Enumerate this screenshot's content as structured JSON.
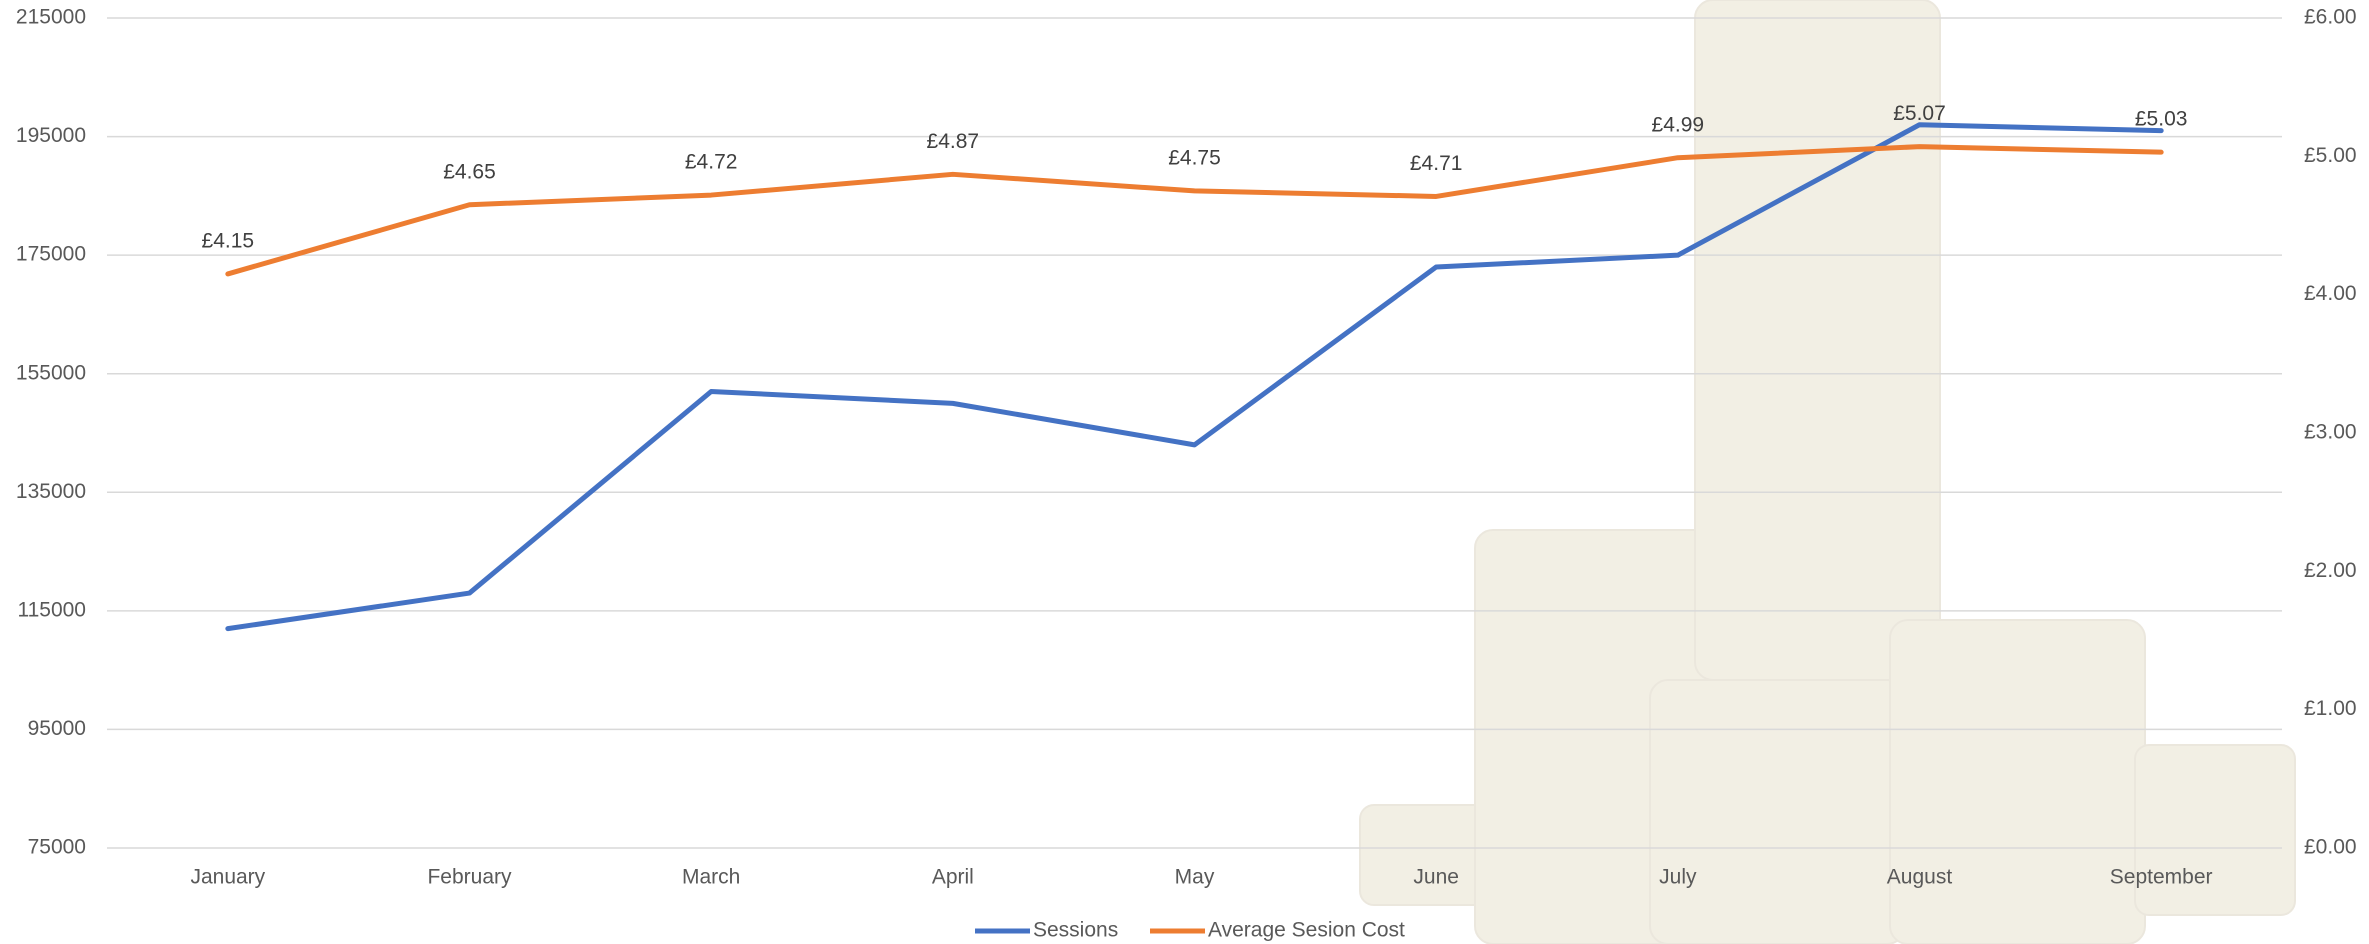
{
  "chart_data": {
    "type": "line",
    "categories": [
      "January",
      "February",
      "March",
      "April",
      "May",
      "June",
      "July",
      "August",
      "September"
    ],
    "series": [
      {
        "name": "Sessions",
        "color": "#4472c4",
        "values": [
          112000,
          118000,
          152000,
          150000,
          143000,
          173000,
          175000,
          197000,
          196000
        ]
      },
      {
        "name": "Average Sesion Cost",
        "color": "#ed7d31",
        "axis": "y2",
        "values": [
          4.15,
          4.65,
          4.72,
          4.87,
          4.75,
          4.71,
          4.99,
          5.07,
          5.03
        ],
        "value_labels": [
          "£4.15",
          "£4.65",
          "£4.72",
          "£4.87",
          "£4.75",
          "£4.71",
          "£4.99",
          "£5.07",
          "£5.03"
        ]
      }
    ],
    "ylim": [
      75000,
      215000
    ],
    "yticks": [
      75000,
      95000,
      115000,
      135000,
      155000,
      175000,
      195000,
      215000
    ],
    "y2lim": [
      0,
      6
    ],
    "y2ticks": [
      {
        "value": 0,
        "label": "£0.00"
      },
      {
        "value": 1,
        "label": "£1.00"
      },
      {
        "value": 2,
        "label": "£2.00"
      },
      {
        "value": 3,
        "label": "£3.00"
      },
      {
        "value": 4,
        "label": "£4.00"
      },
      {
        "value": 5,
        "label": "£5.00"
      },
      {
        "value": 6,
        "label": "£6.00"
      }
    ],
    "grid": true,
    "legend": "bottom"
  }
}
